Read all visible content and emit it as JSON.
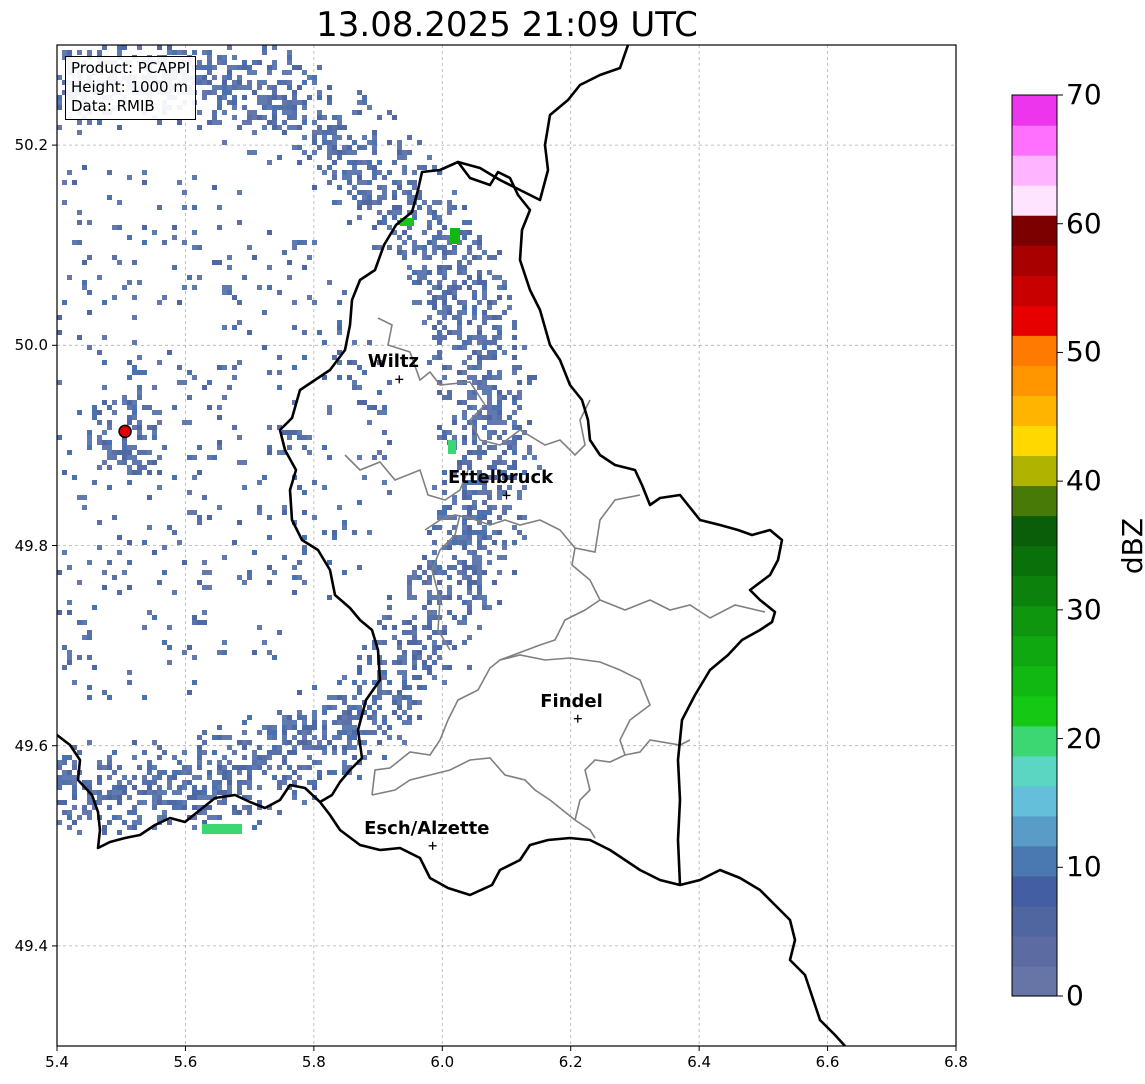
{
  "title": "13.08.2025 21:09 UTC",
  "info_box": {
    "product": "Product: PCAPPI",
    "height": "Height: 1000 m",
    "data": "Data: RMIB"
  },
  "axes": {
    "x_ticks": [
      "5.4",
      "5.6",
      "5.8",
      "6.0",
      "6.2",
      "6.4",
      "6.6",
      "6.8"
    ],
    "y_ticks": [
      "50.2",
      "50.0",
      "49.8",
      "49.6",
      "49.4"
    ],
    "x_range": [
      5.4,
      6.8
    ],
    "y_range": [
      49.3,
      50.3
    ],
    "grid": true
  },
  "places": [
    {
      "name": "Wiltz",
      "lon": 5.933,
      "lat": 49.966
    },
    {
      "name": "Ettelbruck",
      "lon": 6.1,
      "lat": 49.85
    },
    {
      "name": "Findel",
      "lon": 6.211,
      "lat": 49.627
    },
    {
      "name": "Esch/Alzette",
      "lon": 5.985,
      "lat": 49.5
    }
  ],
  "radar_site": {
    "lon": 5.506,
    "lat": 49.914,
    "color": "#e00000"
  },
  "colorbar": {
    "label": "dBZ",
    "min": 0,
    "max": 70,
    "ticks": [
      "0",
      "10",
      "20",
      "30",
      "40",
      "50",
      "60",
      "70"
    ],
    "colors": [
      "#6674a6",
      "#5c6ca3",
      "#4f66a0",
      "#435ea3",
      "#4a78b0",
      "#5a9cc8",
      "#64c0da",
      "#5ad6c2",
      "#3cd673",
      "#14c814",
      "#12b812",
      "#10a810",
      "#0e960e",
      "#0c820c",
      "#0a700a",
      "#0a5e0a",
      "#487a08",
      "#b0b400",
      "#ffd800",
      "#ffb400",
      "#ff9600",
      "#ff7a00",
      "#e60000",
      "#c80000",
      "#a80000",
      "#7c0000",
      "#ffe4ff",
      "#ffb4ff",
      "#ff70ff",
      "#ee35ee"
    ]
  },
  "colors": {
    "echo": "#5a70a8",
    "border_country": "#000000",
    "border_canton": "#808080"
  }
}
